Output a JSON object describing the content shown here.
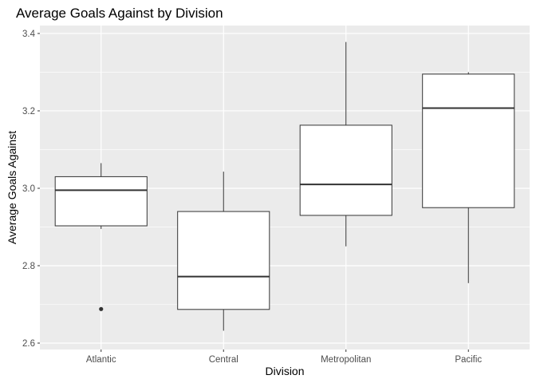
{
  "chart_data": {
    "type": "box",
    "title": "Average Goals Against by Division",
    "xlabel": "Division",
    "ylabel": "Average Goals Against",
    "ylim": [
      2.6,
      3.4
    ],
    "yticks": [
      2.6,
      2.8,
      3.0,
      3.2,
      3.4
    ],
    "ytick_labels": [
      "2.6",
      "2.8",
      "3.0",
      "3.2",
      "3.4"
    ],
    "grid": true,
    "categories": [
      "Atlantic",
      "Central",
      "Metropolitan",
      "Pacific"
    ],
    "boxes": [
      {
        "category": "Atlantic",
        "whisker_low": 2.895,
        "q1": 2.903,
        "median": 2.995,
        "q3": 3.03,
        "whisker_high": 3.065,
        "outliers": [
          2.688
        ]
      },
      {
        "category": "Central",
        "whisker_low": 2.632,
        "q1": 2.687,
        "median": 2.772,
        "q3": 2.94,
        "whisker_high": 3.043,
        "outliers": []
      },
      {
        "category": "Metropolitan",
        "whisker_low": 2.85,
        "q1": 2.93,
        "median": 3.01,
        "q3": 3.163,
        "whisker_high": 3.378,
        "outliers": []
      },
      {
        "category": "Pacific",
        "whisker_low": 2.755,
        "q1": 2.95,
        "median": 3.207,
        "q3": 3.295,
        "whisker_high": 3.3,
        "outliers": []
      }
    ]
  },
  "colors": {
    "panel_background": "#ebebeb",
    "grid_major": "#ffffff",
    "box_fill": "#ffffff",
    "box_stroke": "#333333",
    "tick_text": "#4d4d4d",
    "title_text": "#000000"
  }
}
